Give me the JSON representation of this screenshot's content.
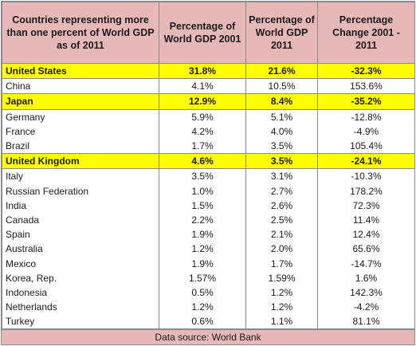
{
  "header": {
    "col1": "Countries representing more than one percent of World GDP as of 2011",
    "col2": "Percentage of World GDP 2001",
    "col3": "Percentage of World GDP 2011",
    "col4": "Percentage Change 2001 - 2011"
  },
  "rows": [
    {
      "country": "United States",
      "gdp2001": "31.8%",
      "gdp2011": "21.6%",
      "change": "-32.3%",
      "highlight": true
    },
    {
      "country": "China",
      "gdp2001": "4.1%",
      "gdp2011": "10.5%",
      "change": "153.6%",
      "highlight": false
    },
    {
      "country": "Japan",
      "gdp2001": "12.9%",
      "gdp2011": "8.4%",
      "change": "-35.2%",
      "highlight": true
    },
    {
      "country": "Germany",
      "gdp2001": "5.9%",
      "gdp2011": "5.1%",
      "change": "-12.8%",
      "highlight": false
    },
    {
      "country": "France",
      "gdp2001": "4.2%",
      "gdp2011": "4.0%",
      "change": "-4.9%",
      "highlight": false
    },
    {
      "country": "Brazil",
      "gdp2001": "1.7%",
      "gdp2011": "3.5%",
      "change": "105.4%",
      "highlight": false
    },
    {
      "country": "United Kingdom",
      "gdp2001": "4.6%",
      "gdp2011": "3.5%",
      "change": "-24.1%",
      "highlight": true
    },
    {
      "country": "Italy",
      "gdp2001": "3.5%",
      "gdp2011": "3.1%",
      "change": "-10.3%",
      "highlight": false
    },
    {
      "country": "Russian Federation",
      "gdp2001": "1.0%",
      "gdp2011": "2.7%",
      "change": "178.2%",
      "highlight": false
    },
    {
      "country": "India",
      "gdp2001": "1.5%",
      "gdp2011": "2.6%",
      "change": "72.3%",
      "highlight": false
    },
    {
      "country": "Canada",
      "gdp2001": "2.2%",
      "gdp2011": "2.5%",
      "change": "11.4%",
      "highlight": false
    },
    {
      "country": "Spain",
      "gdp2001": "1.9%",
      "gdp2011": "2.1%",
      "change": "12.4%",
      "highlight": false
    },
    {
      "country": "Australia",
      "gdp2001": "1.2%",
      "gdp2011": "2.0%",
      "change": "65.6%",
      "highlight": false
    },
    {
      "country": "Mexico",
      "gdp2001": "1.9%",
      "gdp2011": "1.7%",
      "change": "-14.7%",
      "highlight": false
    },
    {
      "country": "Korea, Rep.",
      "gdp2001": "1.57%",
      "gdp2011": "1.59%",
      "change": "1.6%",
      "highlight": false
    },
    {
      "country": "Indonesia",
      "gdp2001": "0.5%",
      "gdp2011": "1.2%",
      "change": "142.3%",
      "highlight": false
    },
    {
      "country": "Netherlands",
      "gdp2001": "1.2%",
      "gdp2011": "1.2%",
      "change": "-4.2%",
      "highlight": false
    },
    {
      "country": "Turkey",
      "gdp2001": "0.6%",
      "gdp2011": "1.1%",
      "change": "81.1%",
      "highlight": false
    }
  ],
  "footer": {
    "source": "Data source:  World Bank"
  },
  "colors": {
    "header_bg": "#e6b9b8",
    "highlight": "#ffff00",
    "border": "#8a8a8a"
  }
}
